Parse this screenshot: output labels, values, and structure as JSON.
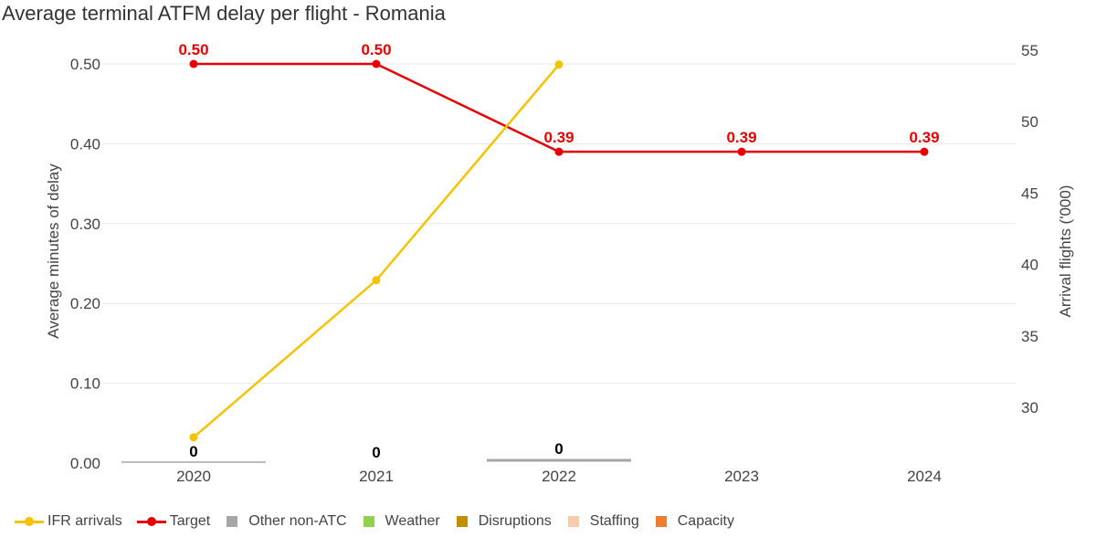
{
  "title": "Average terminal ATFM delay per flight - Romania",
  "chart_data": {
    "type": "line",
    "title": "Average terminal ATFM delay per flight - Romania",
    "categories": [
      "2020",
      "2021",
      "2022",
      "2023",
      "2024"
    ],
    "ylabel_left": "Average minutes of delay",
    "ylabel_right": "Arrival flights ('000)",
    "ylim_left": [
      0,
      0.5
    ],
    "yticks_left": [
      "0.00",
      "0.10",
      "0.20",
      "0.30",
      "0.40",
      "0.50"
    ],
    "ylim_right": [
      26,
      55
    ],
    "yticks_right": [
      "30",
      "35",
      "40",
      "45",
      "50",
      "55"
    ],
    "grid": true,
    "legend_position": "bottom",
    "series": [
      {
        "name": "IFR arrivals",
        "type": "line",
        "axis": "right",
        "color": "#f5c200",
        "values": [
          27.9,
          38.9,
          54.0,
          null,
          null
        ]
      },
      {
        "name": "Target",
        "type": "line",
        "axis": "left",
        "color": "#e60000",
        "values": [
          0.5,
          0.5,
          0.39,
          0.39,
          0.39
        ],
        "labels": [
          "0.50",
          "0.50",
          "0.39",
          "0.39",
          "0.39"
        ]
      },
      {
        "name": "Other non-ATC",
        "type": "bar",
        "axis": "left",
        "color": "#a6a6a6",
        "values": [
          0,
          0,
          0,
          null,
          null
        ]
      },
      {
        "name": "Weather",
        "type": "bar",
        "axis": "left",
        "color": "#92d050",
        "values": [
          null,
          null,
          null,
          null,
          null
        ]
      },
      {
        "name": "Disruptions",
        "type": "bar",
        "axis": "left",
        "color": "#bf9000",
        "values": [
          null,
          null,
          null,
          null,
          null
        ]
      },
      {
        "name": "Staffing",
        "type": "bar",
        "axis": "left",
        "color": "#f8cbad",
        "values": [
          null,
          null,
          null,
          null,
          null
        ]
      },
      {
        "name": "Capacity",
        "type": "bar",
        "axis": "left",
        "color": "#ed7d31",
        "values": [
          null,
          null,
          null,
          null,
          null
        ]
      }
    ],
    "bar_total_labels": [
      "0",
      "0",
      "0"
    ]
  },
  "legend": [
    {
      "label": "IFR arrivals",
      "kind": "line",
      "color": "#f5c200"
    },
    {
      "label": "Target",
      "kind": "line",
      "color": "#e60000"
    },
    {
      "label": "Other non-ATC",
      "kind": "square",
      "color": "#a6a6a6"
    },
    {
      "label": "Weather",
      "kind": "square",
      "color": "#92d050"
    },
    {
      "label": "Disruptions",
      "kind": "square",
      "color": "#bf9000"
    },
    {
      "label": "Staffing",
      "kind": "square",
      "color": "#f8cbad"
    },
    {
      "label": "Capacity",
      "kind": "square",
      "color": "#ed7d31"
    }
  ]
}
